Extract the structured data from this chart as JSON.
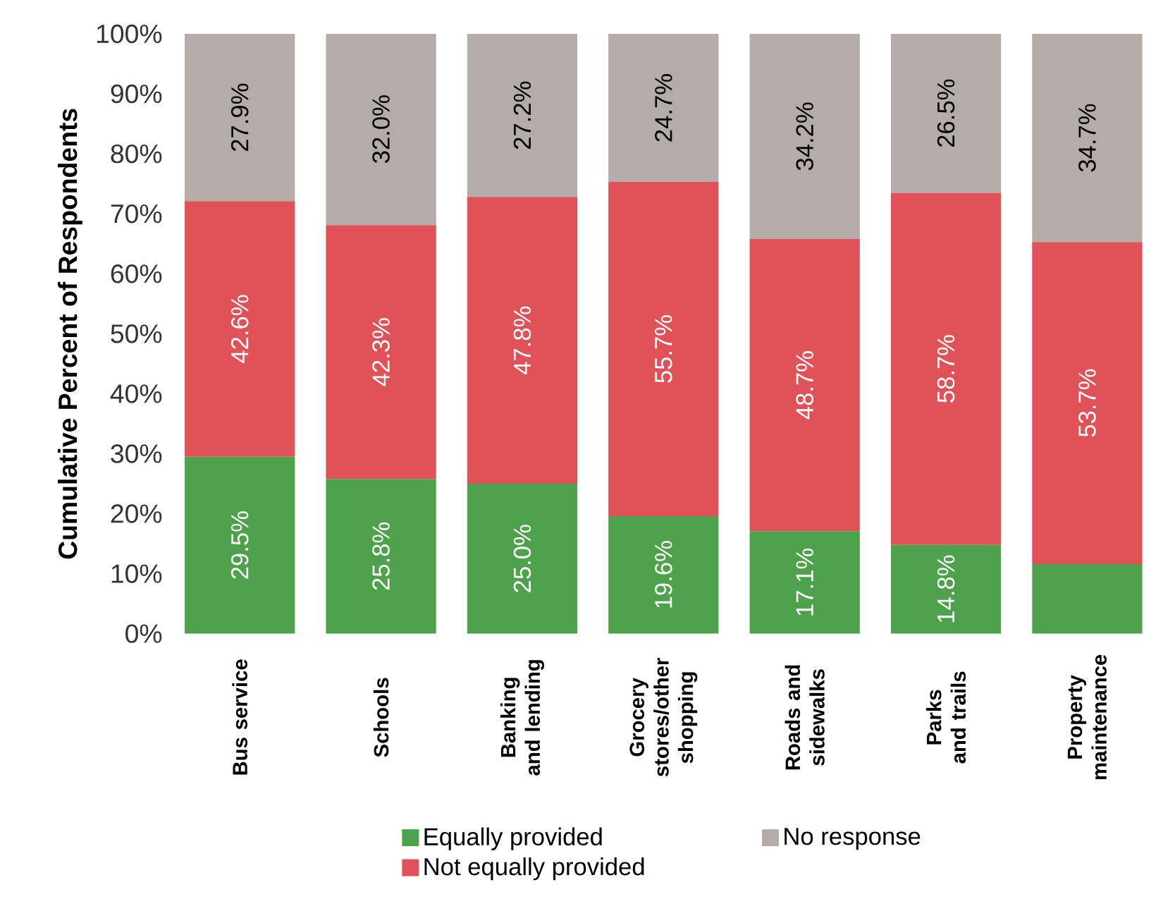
{
  "chart_data": {
    "type": "bar",
    "stacked": true,
    "ylabel": "Cumulative Percent of Respondents",
    "categories": [
      "Bus service",
      "Schools",
      "Banking and lending",
      "Grocery stores/other shopping",
      "Roads and sidewalks",
      "Parks and trails",
      "Property maintenance"
    ],
    "series": [
      {
        "name": "Equally provided",
        "color": "#4ea24b",
        "values": [
          29.5,
          25.8,
          25.0,
          19.6,
          17.1,
          14.8,
          11.6
        ],
        "value_labels": [
          "29.5%",
          "25.8%",
          "25.0%",
          "19.6%",
          "17.1%",
          "14.8%",
          null
        ]
      },
      {
        "name": "Not equally provided",
        "color": "#e05257",
        "values": [
          42.6,
          42.3,
          47.8,
          55.7,
          48.7,
          58.7,
          53.7
        ],
        "value_labels": [
          "42.6%",
          "42.3%",
          "47.8%",
          "55.7%",
          "48.7%",
          "58.7%",
          "53.7%"
        ]
      },
      {
        "name": "No response",
        "color": "#b3aca9",
        "values": [
          27.9,
          32.0,
          27.2,
          24.7,
          34.2,
          26.5,
          34.7
        ],
        "value_labels": [
          "27.9%",
          "32.0%",
          "27.2%",
          "24.7%",
          "34.2%",
          "26.5%",
          "34.7%"
        ]
      }
    ],
    "ylim": [
      0,
      100
    ],
    "yticks": [
      {
        "value": 0,
        "label": "0%"
      },
      {
        "value": 10,
        "label": "10%"
      },
      {
        "value": 20,
        "label": "20%"
      },
      {
        "value": 30,
        "label": "30%"
      },
      {
        "value": 40,
        "label": "40%"
      },
      {
        "value": 50,
        "label": "50%"
      },
      {
        "value": 60,
        "label": "60%"
      },
      {
        "value": 70,
        "label": "70%"
      },
      {
        "value": 80,
        "label": "80%"
      },
      {
        "value": 90,
        "label": "90%"
      },
      {
        "value": 100,
        "label": "100%"
      }
    ],
    "legend": "bottom"
  }
}
